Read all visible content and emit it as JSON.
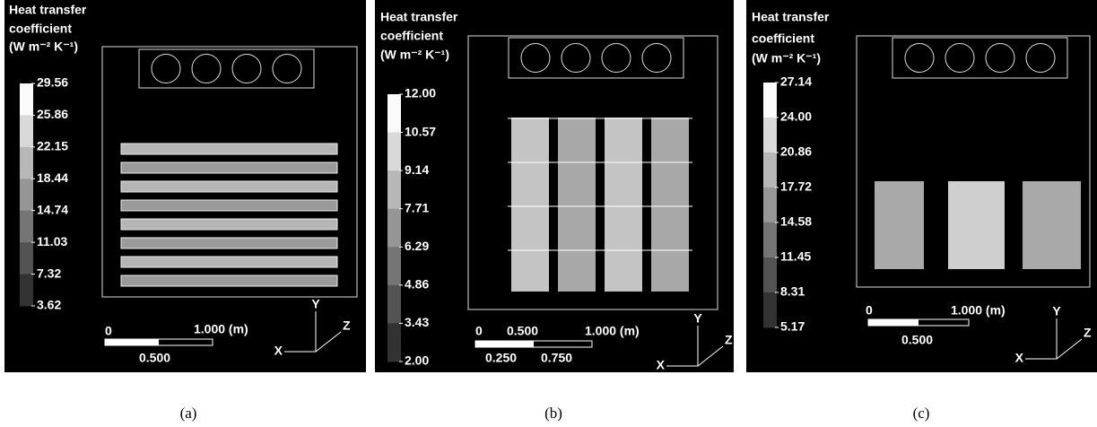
{
  "panels": [
    {
      "title_lines": [
        "Heat transfer",
        "coefficient",
        "(W m⁻² K⁻¹)"
      ],
      "colorbar_labels": [
        "29.56",
        "25.86",
        "22.15",
        "18.44",
        "14.74",
        "11.03",
        "7.32",
        "3.62"
      ],
      "scale_labels": [
        "0",
        "1.000 (m)",
        "0.500"
      ],
      "axes": [
        "Y",
        "Z",
        "X"
      ],
      "caption": "(a)"
    },
    {
      "title_lines": [
        "Heat transfer",
        "coefficient",
        "(W m⁻² K⁻¹)"
      ],
      "colorbar_labels": [
        "12.00",
        "10.57",
        "9.14",
        "7.71",
        "6.29",
        "4.86",
        "3.43",
        "2.00"
      ],
      "scale_labels": [
        "0",
        "0.500",
        "1.000 (m)",
        "0.250",
        "0.750"
      ],
      "axes": [
        "Y",
        "Z",
        "X"
      ],
      "caption": "(b)"
    },
    {
      "title_lines": [
        "Heat transfer",
        "coefficient",
        "(W m⁻² K⁻¹)"
      ],
      "colorbar_labels": [
        "27.14",
        "24.00",
        "20.86",
        "17.72",
        "14.58",
        "11.45",
        "8.31",
        "5.17"
      ],
      "scale_labels": [
        "0",
        "1.000 (m)",
        "0.500"
      ],
      "axes": [
        "Y",
        "Z",
        "X"
      ],
      "caption": "(c)"
    }
  ]
}
